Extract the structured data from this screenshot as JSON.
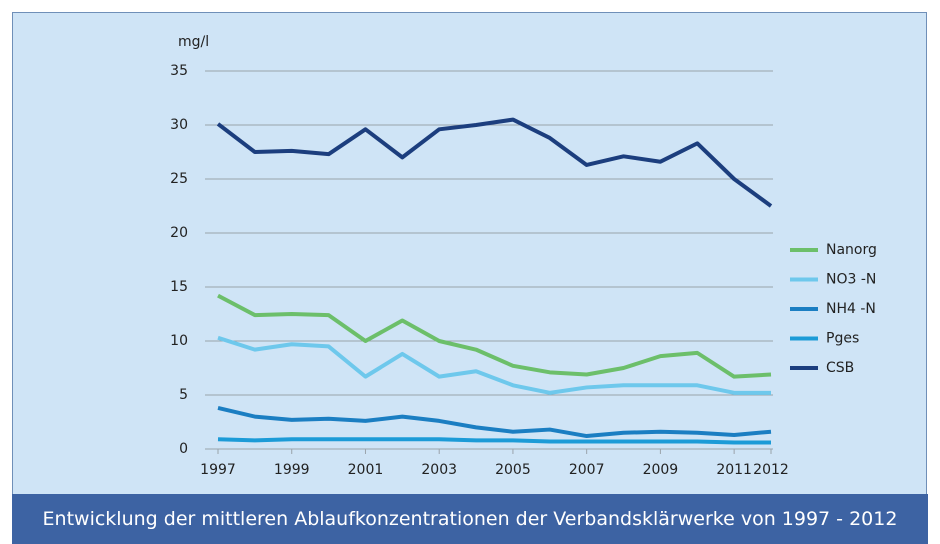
{
  "chart_data": {
    "type": "line",
    "y_unit": "mg/l",
    "caption": "Entwicklung der mittleren Ablaufkonzentrationen der Verbandsklärwerke von 1997 - 2012",
    "x": [
      1997,
      1998,
      1999,
      2000,
      2001,
      2002,
      2003,
      2004,
      2005,
      2006,
      2007,
      2008,
      2009,
      2010,
      2011,
      2012
    ],
    "xlim": [
      1997,
      2012
    ],
    "xticks": [
      1997,
      1999,
      2001,
      2003,
      2005,
      2007,
      2009,
      2011,
      2012
    ],
    "ylim": [
      0,
      35
    ],
    "yticks": [
      0,
      5,
      10,
      15,
      20,
      25,
      30,
      35
    ],
    "grid": true,
    "legend": "right",
    "series": [
      {
        "name": "Nanorg",
        "color": "#6cbf6a",
        "values": [
          14.2,
          12.4,
          12.5,
          12.4,
          10.0,
          11.9,
          10.0,
          9.2,
          7.7,
          7.1,
          6.9,
          7.5,
          8.6,
          8.9,
          6.7,
          6.9
        ]
      },
      {
        "name": "NO3 -N",
        "color": "#6ec8ec",
        "values": [
          10.3,
          9.2,
          9.7,
          9.5,
          6.7,
          8.8,
          6.7,
          7.2,
          5.9,
          5.2,
          5.7,
          5.9,
          5.9,
          5.9,
          5.2,
          5.2
        ]
      },
      {
        "name": "NH4 -N",
        "color": "#1b7ec2",
        "values": [
          3.8,
          3.0,
          2.7,
          2.8,
          2.6,
          3.0,
          2.6,
          2.0,
          1.6,
          1.8,
          1.2,
          1.5,
          1.6,
          1.5,
          1.3,
          1.6
        ]
      },
      {
        "name": "Pges",
        "color": "#1c9bd7",
        "values": [
          0.9,
          0.8,
          0.9,
          0.9,
          0.9,
          0.9,
          0.9,
          0.8,
          0.8,
          0.7,
          0.7,
          0.7,
          0.7,
          0.7,
          0.6,
          0.6
        ]
      },
      {
        "name": "CSB",
        "color": "#1c3e7e",
        "values": [
          30.1,
          27.5,
          27.6,
          27.3,
          29.6,
          27.0,
          29.6,
          30.0,
          30.5,
          28.8,
          26.3,
          27.1,
          26.6,
          28.3,
          25.0,
          22.5
        ]
      }
    ]
  }
}
